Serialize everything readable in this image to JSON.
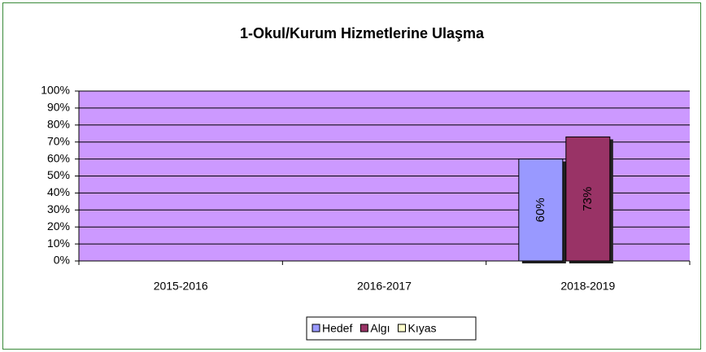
{
  "chart_data": {
    "type": "bar",
    "title": "1-Okul/Kurum Hizmetlerine Ulaşma",
    "categories": [
      "2015-2016",
      "2016-2017",
      "2018-2019"
    ],
    "series": [
      {
        "name": "Hedef",
        "color": "#9999ff",
        "values": [
          null,
          null,
          60
        ],
        "value_labels": [
          null,
          null,
          "60%"
        ]
      },
      {
        "name": "Algı",
        "color": "#993366",
        "values": [
          null,
          null,
          73
        ],
        "value_labels": [
          null,
          null,
          "73%"
        ]
      },
      {
        "name": "Kıyas",
        "color": "#ffffcc",
        "values": [
          null,
          null,
          null
        ]
      }
    ],
    "ylim": [
      0,
      100
    ],
    "yticks": [
      {
        "value": 0,
        "label": "0%"
      },
      {
        "value": 10,
        "label": "10%"
      },
      {
        "value": 20,
        "label": "20%"
      },
      {
        "value": 30,
        "label": "30%"
      },
      {
        "value": 40,
        "label": "40%"
      },
      {
        "value": 50,
        "label": "50%"
      },
      {
        "value": 60,
        "label": "60%"
      },
      {
        "value": 70,
        "label": "70%"
      },
      {
        "value": 80,
        "label": "80%"
      },
      {
        "value": 90,
        "label": "90%"
      },
      {
        "value": 100,
        "label": "100%"
      }
    ],
    "grid": true,
    "plot_background": "#cc99ff",
    "legend": "bottom"
  }
}
